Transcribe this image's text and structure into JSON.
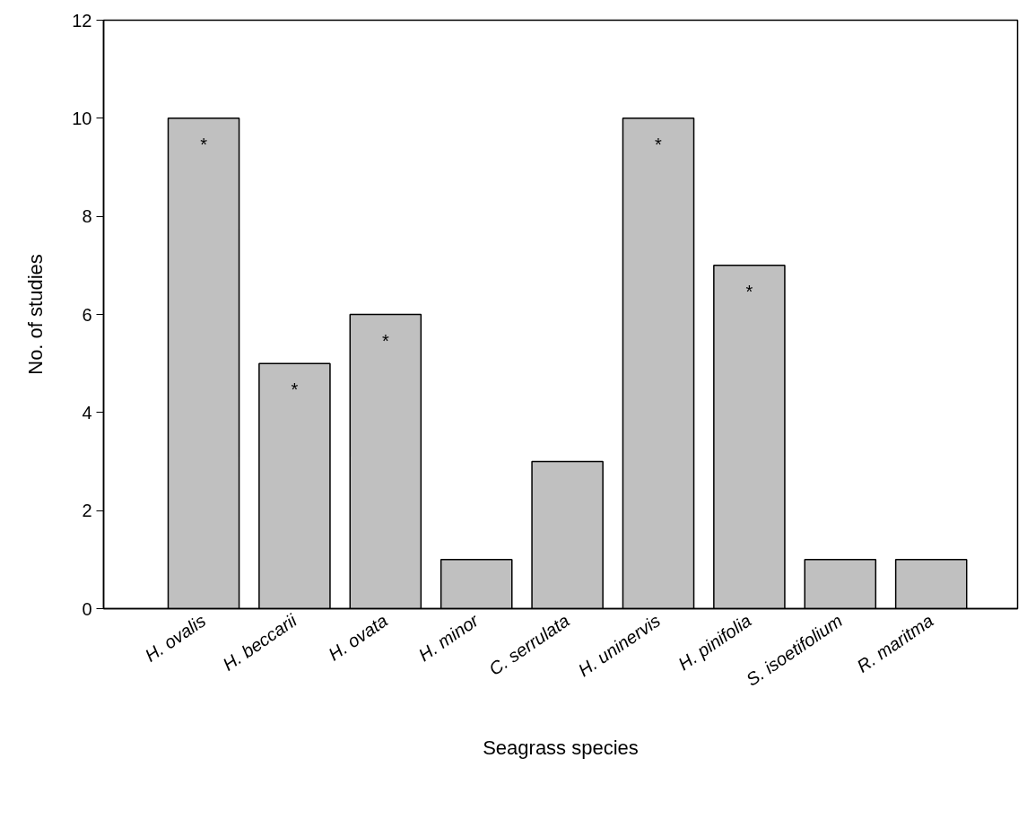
{
  "chart_data": {
    "type": "bar",
    "xlabel": "Seagrass species",
    "ylabel": "No. of studies",
    "categories": [
      "H. ovalis",
      "H. beccarii",
      "H. ovata",
      "H. minor",
      "C. serrulata",
      "H. uninervis",
      "H. pinifolia",
      "S. isoetifolium",
      "R. maritma"
    ],
    "values": [
      10,
      5,
      6,
      1,
      3,
      10,
      7,
      1,
      1
    ],
    "color": "#c0c0c0",
    "ylim": [
      0,
      12
    ],
    "yticks": [
      0,
      2,
      4,
      6,
      8,
      10,
      12
    ],
    "grid": false,
    "annotations": [
      {
        "text": "*",
        "x": "H. ovalis",
        "y": 10
      },
      {
        "text": "*",
        "x": "H. beccarii",
        "y": 5
      },
      {
        "text": "*",
        "x": "H. ovata",
        "y": 6
      },
      {
        "text": "*",
        "x": "H. uninervis",
        "y": 10
      },
      {
        "text": "*",
        "x": "H. pinifolia",
        "y": 7
      }
    ]
  }
}
